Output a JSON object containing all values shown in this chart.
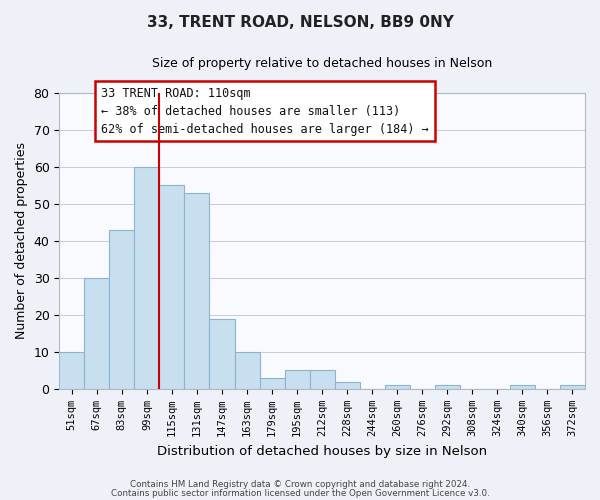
{
  "title": "33, TRENT ROAD, NELSON, BB9 0NY",
  "subtitle": "Size of property relative to detached houses in Nelson",
  "xlabel": "Distribution of detached houses by size in Nelson",
  "ylabel": "Number of detached properties",
  "bar_color": "#c8dff0",
  "bar_edge_color": "#8ab4cc",
  "bin_labels": [
    "51sqm",
    "67sqm",
    "83sqm",
    "99sqm",
    "115sqm",
    "131sqm",
    "147sqm",
    "163sqm",
    "179sqm",
    "195sqm",
    "212sqm",
    "228sqm",
    "244sqm",
    "260sqm",
    "276sqm",
    "292sqm",
    "308sqm",
    "324sqm",
    "340sqm",
    "356sqm",
    "372sqm"
  ],
  "bar_heights": [
    10,
    30,
    43,
    60,
    55,
    53,
    19,
    10,
    3,
    5,
    5,
    2,
    0,
    1,
    0,
    1,
    0,
    0,
    1,
    0,
    1
  ],
  "vline_color": "#cc0000",
  "ylim": [
    0,
    80
  ],
  "yticks": [
    0,
    10,
    20,
    30,
    40,
    50,
    60,
    70,
    80
  ],
  "annotation_title": "33 TRENT ROAD: 110sqm",
  "annotation_line1": "← 38% of detached houses are smaller (113)",
  "annotation_line2": "62% of semi-detached houses are larger (184) →",
  "footer_line1": "Contains HM Land Registry data © Crown copyright and database right 2024.",
  "footer_line2": "Contains public sector information licensed under the Open Government Licence v3.0.",
  "background_color": "#eef2f8",
  "plot_bg_color": "#f8faff",
  "grid_color": "#c8ccd8"
}
